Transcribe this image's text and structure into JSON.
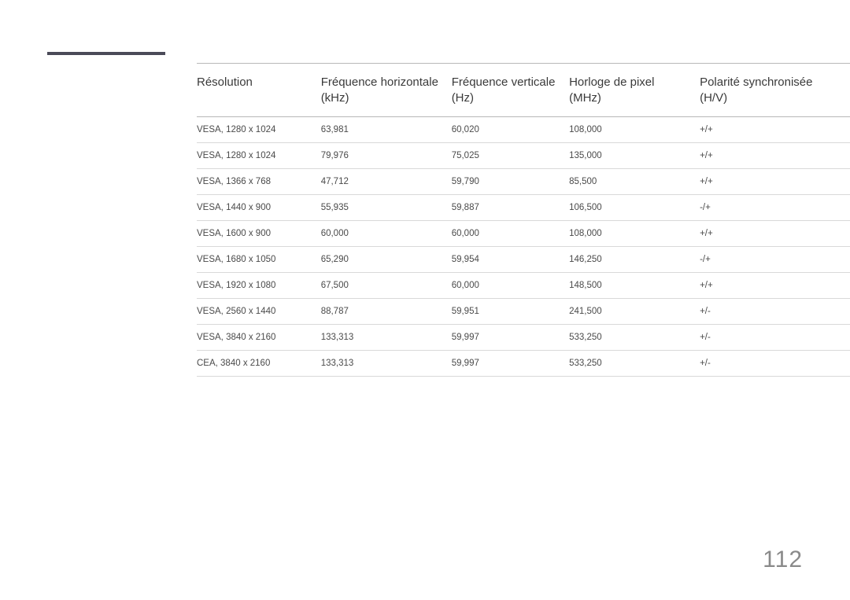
{
  "page_number": "112",
  "accent_bar_color": "#4a4a58",
  "border_color": "#b8b8b8",
  "row_border_color": "#d9d9d9",
  "table": {
    "columns": [
      {
        "line1": "Résolution",
        "line2": ""
      },
      {
        "line1": "Fréquence horizontale",
        "line2": "(kHz)"
      },
      {
        "line1": "Fréquence verticale",
        "line2": "(Hz)"
      },
      {
        "line1": "Horloge de pixel",
        "line2": "(MHz)"
      },
      {
        "line1": "Polarité synchronisée",
        "line2": "(H/V)"
      }
    ],
    "rows": [
      [
        "VESA, 1280 x 1024",
        "63,981",
        "60,020",
        "108,000",
        "+/+"
      ],
      [
        "VESA, 1280 x 1024",
        "79,976",
        "75,025",
        "135,000",
        "+/+"
      ],
      [
        "VESA, 1366 x 768",
        "47,712",
        "59,790",
        "85,500",
        "+/+"
      ],
      [
        "VESA, 1440 x 900",
        "55,935",
        "59,887",
        "106,500",
        "-/+"
      ],
      [
        "VESA, 1600 x 900",
        "60,000",
        "60,000",
        "108,000",
        "+/+"
      ],
      [
        "VESA, 1680 x 1050",
        "65,290",
        "59,954",
        "146,250",
        "-/+"
      ],
      [
        "VESA, 1920 x 1080",
        "67,500",
        "60,000",
        "148,500",
        "+/+"
      ],
      [
        "VESA, 2560 x 1440",
        "88,787",
        "59,951",
        "241,500",
        "+/-"
      ],
      [
        "VESA, 3840 x 2160",
        "133,313",
        "59,997",
        "533,250",
        "+/-"
      ],
      [
        "CEA, 3840 x 2160",
        "133,313",
        "59,997",
        "533,250",
        "+/-"
      ]
    ]
  }
}
